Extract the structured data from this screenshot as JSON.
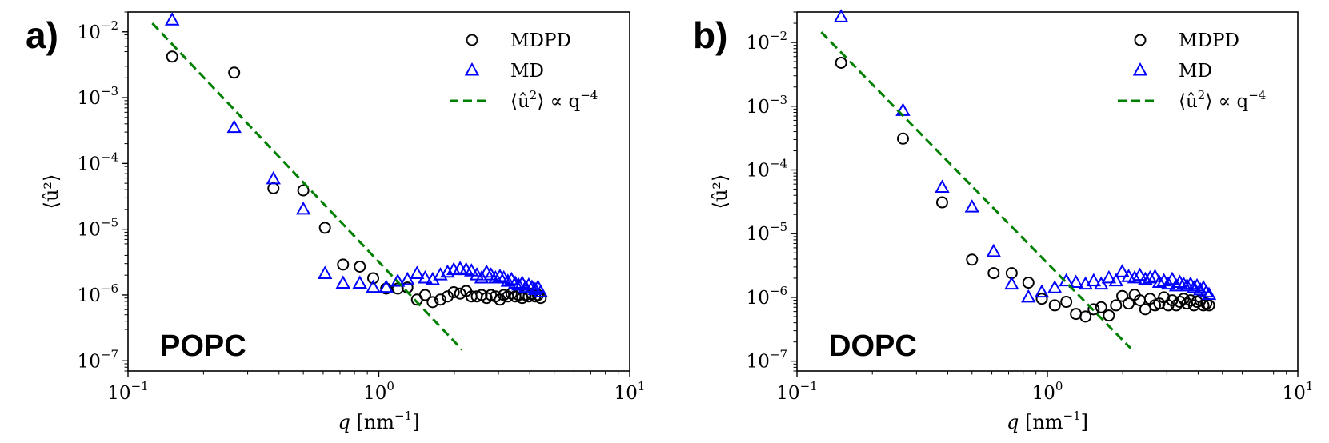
{
  "chart_data": [
    {
      "type": "scatter",
      "panel_label": "a)",
      "panel_name": "POPC",
      "xlabel": {
        "var": "q",
        "unit_open": "[nm",
        "unit_exp": "−1",
        "unit_close": "]"
      },
      "ylabel": "⟨û²⟩",
      "x_scale": "log",
      "y_scale": "log",
      "xlim": [
        0.1,
        10
      ],
      "ylim": [
        7e-08,
        0.02
      ],
      "x_ticks": [
        {
          "base": "10",
          "exp": "−1"
        },
        {
          "base": "10",
          "exp": "0"
        },
        {
          "base": "10",
          "exp": "1"
        }
      ],
      "y_ticks": [
        {
          "base": "10",
          "exp": "−2"
        },
        {
          "base": "10",
          "exp": "−3"
        },
        {
          "base": "10",
          "exp": "−4"
        },
        {
          "base": "10",
          "exp": "−5"
        },
        {
          "base": "10",
          "exp": "−6"
        },
        {
          "base": "10",
          "exp": "−7"
        }
      ],
      "legend": {
        "position": "top-right",
        "entries": [
          {
            "label": "MDPD",
            "marker": "circle",
            "color": "#000000"
          },
          {
            "label": "MD",
            "marker": "triangle",
            "color": "#0000ff"
          },
          {
            "label_prefix": "⟨û",
            "label_sup1": "2",
            "label_mid": "⟩ ∝ q",
            "label_sup2": "−4",
            "marker": "dashed-line",
            "color": "#008000"
          }
        ]
      },
      "series": [
        {
          "name": "MDPD",
          "marker": "circle",
          "color": "#000000",
          "x": [
            0.15,
            0.265,
            0.38,
            0.5,
            0.61,
            0.72,
            0.84,
            0.95,
            1.07,
            1.19,
            1.3,
            1.42,
            1.53,
            1.64,
            1.76,
            1.88,
            1.99,
            2.11,
            2.23,
            2.34,
            2.46,
            2.57,
            2.69,
            2.8,
            2.92,
            3.04,
            3.15,
            3.27,
            3.38,
            3.5,
            3.61,
            3.73,
            3.85,
            3.96,
            4.08,
            4.2,
            4.31,
            4.42
          ],
          "y": [
            0.0042,
            0.0024,
            4.2e-05,
            3.9e-05,
            1.05e-05,
            2.9e-06,
            2.7e-06,
            1.8e-06,
            1.25e-06,
            1.25e-06,
            1.3e-06,
            8.5e-07,
            1e-06,
            7.8e-07,
            8.5e-07,
            9.5e-07,
            1.1e-06,
            1.05e-06,
            1.15e-06,
            9.5e-07,
            9.5e-07,
            1e-06,
            9e-07,
            1e-06,
            9.5e-07,
            8.5e-07,
            1e-06,
            9.5e-07,
            1.05e-06,
            9.5e-07,
            1e-06,
            9e-07,
            1e-06,
            9.5e-07,
            1.05e-06,
            9.5e-07,
            1e-06,
            9e-07
          ]
        },
        {
          "name": "MD",
          "marker": "triangle",
          "color": "#0000ff",
          "x": [
            0.15,
            0.265,
            0.38,
            0.5,
            0.61,
            0.72,
            0.84,
            0.95,
            1.07,
            1.19,
            1.3,
            1.42,
            1.53,
            1.64,
            1.76,
            1.88,
            1.99,
            2.11,
            2.23,
            2.34,
            2.46,
            2.57,
            2.69,
            2.8,
            2.92,
            3.04,
            3.15,
            3.27,
            3.38,
            3.5,
            3.61,
            3.73,
            3.85,
            3.96,
            4.08,
            4.2,
            4.31,
            4.42
          ],
          "y": [
            0.015,
            0.00035,
            5.8e-05,
            2e-05,
            2.1e-06,
            1.5e-06,
            1.5e-06,
            1.3e-06,
            1.3e-06,
            1.6e-06,
            1.7e-06,
            2.1e-06,
            1.8e-06,
            1.7e-06,
            2e-06,
            2.2e-06,
            2.4e-06,
            2.5e-06,
            2.4e-06,
            2.3e-06,
            2e-06,
            1.8e-06,
            2.2e-06,
            2e-06,
            1.8e-06,
            1.9e-06,
            1.8e-06,
            1.6e-06,
            1.7e-06,
            1.5e-06,
            1.4e-06,
            1.5e-06,
            1.3e-06,
            1.4e-06,
            1.3e-06,
            1.2e-06,
            1.3e-06,
            1.1e-06
          ]
        },
        {
          "name": "⟨û²⟩ ∝ q⁻⁴",
          "marker": "dashed-line",
          "color": "#008000",
          "x": [
            0.125,
            2.15
          ],
          "y": [
            0.0135,
            1.47e-07
          ]
        }
      ]
    },
    {
      "type": "scatter",
      "panel_label": "b)",
      "panel_name": "DOPC",
      "xlabel": {
        "var": "q",
        "unit_open": "[nm",
        "unit_exp": "−1",
        "unit_close": "]"
      },
      "ylabel": "⟨û²⟩",
      "x_scale": "log",
      "y_scale": "log",
      "xlim": [
        0.1,
        10
      ],
      "ylim": [
        7e-08,
        0.03
      ],
      "x_ticks": [
        {
          "base": "10",
          "exp": "−1"
        },
        {
          "base": "10",
          "exp": "0"
        },
        {
          "base": "10",
          "exp": "1"
        }
      ],
      "y_ticks": [
        {
          "base": "10",
          "exp": "−2"
        },
        {
          "base": "10",
          "exp": "−3"
        },
        {
          "base": "10",
          "exp": "−4"
        },
        {
          "base": "10",
          "exp": "−5"
        },
        {
          "base": "10",
          "exp": "−6"
        },
        {
          "base": "10",
          "exp": "−7"
        }
      ],
      "legend": {
        "position": "top-right",
        "entries": [
          {
            "label": "MDPD",
            "marker": "circle",
            "color": "#000000"
          },
          {
            "label": "MD",
            "marker": "triangle",
            "color": "#0000ff"
          },
          {
            "label_prefix": "⟨û",
            "label_sup1": "2",
            "label_mid": "⟩ ∝ q",
            "label_sup2": "−4",
            "marker": "dashed-line",
            "color": "#008000"
          }
        ]
      },
      "series": [
        {
          "name": "MDPD",
          "marker": "circle",
          "color": "#000000",
          "x": [
            0.15,
            0.265,
            0.38,
            0.5,
            0.61,
            0.72,
            0.84,
            0.95,
            1.07,
            1.19,
            1.3,
            1.42,
            1.53,
            1.64,
            1.76,
            1.88,
            1.99,
            2.11,
            2.23,
            2.34,
            2.46,
            2.57,
            2.69,
            2.8,
            2.92,
            3.04,
            3.15,
            3.27,
            3.38,
            3.5,
            3.61,
            3.73,
            3.85,
            3.96,
            4.08,
            4.2,
            4.31,
            4.42
          ],
          "y": [
            0.0048,
            0.00031,
            3.1e-05,
            3.9e-06,
            2.4e-06,
            2.4e-06,
            1.7e-06,
            9.5e-07,
            7.5e-07,
            8.5e-07,
            5.5e-07,
            5e-07,
            6.5e-07,
            7e-07,
            5.2e-07,
            7.5e-07,
            1.05e-06,
            8e-07,
            1.1e-06,
            9e-07,
            6.5e-07,
            9.5e-07,
            7.5e-07,
            8e-07,
            1e-06,
            7.5e-07,
            9e-07,
            7.5e-07,
            8.5e-07,
            9.5e-07,
            8e-07,
            9e-07,
            7.5e-07,
            8.5e-07,
            9e-07,
            7.5e-07,
            8e-07,
            7.5e-07
          ]
        },
        {
          "name": "MD",
          "marker": "triangle",
          "color": "#0000ff",
          "x": [
            0.15,
            0.265,
            0.38,
            0.5,
            0.61,
            0.72,
            0.84,
            0.95,
            1.07,
            1.19,
            1.3,
            1.42,
            1.53,
            1.64,
            1.76,
            1.88,
            1.99,
            2.11,
            2.23,
            2.34,
            2.46,
            2.57,
            2.69,
            2.8,
            2.92,
            3.04,
            3.15,
            3.27,
            3.38,
            3.5,
            3.61,
            3.73,
            3.85,
            3.96,
            4.08,
            4.2,
            4.31,
            4.42
          ],
          "y": [
            0.025,
            0.00085,
            5.3e-05,
            2.6e-05,
            5.2e-06,
            1.6e-06,
            1e-06,
            1.2e-06,
            1.4e-06,
            1.8e-06,
            1.7e-06,
            1.6e-06,
            1.8e-06,
            1.6e-06,
            2e-06,
            1.8e-06,
            2.5e-06,
            2.1e-06,
            2e-06,
            2.2e-06,
            1.9e-06,
            2e-06,
            2.1e-06,
            1.7e-06,
            1.8e-06,
            1.6e-06,
            1.9e-06,
            1.5e-06,
            1.7e-06,
            1.6e-06,
            1.5e-06,
            1.6e-06,
            1.4e-06,
            1.5e-06,
            1.3e-06,
            1.4e-06,
            1.2e-06,
            1.1e-06
          ]
        },
        {
          "name": "⟨û²⟩ ∝ q⁻⁴",
          "marker": "dashed-line",
          "color": "#008000",
          "x": [
            0.125,
            2.15
          ],
          "y": [
            0.0145,
            1.59e-07
          ]
        }
      ]
    }
  ]
}
